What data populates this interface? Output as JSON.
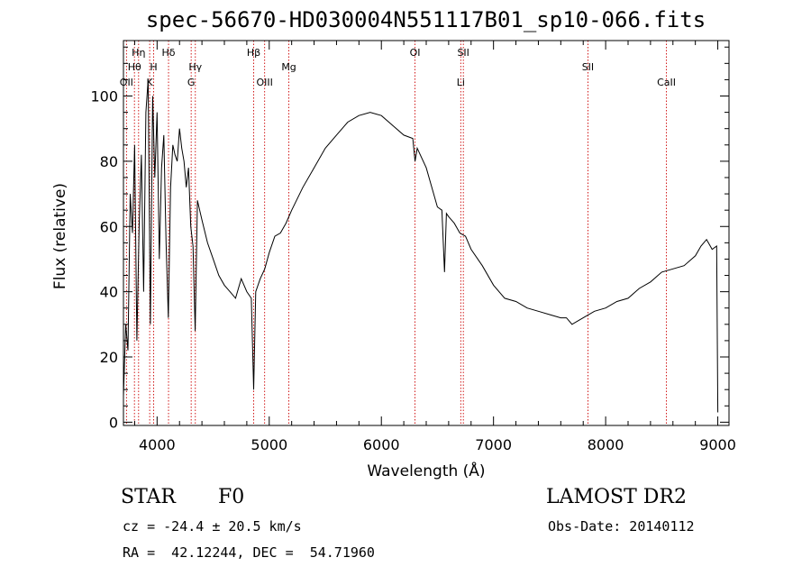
{
  "title": "spec-56670-HD030004N551117B01_sp10-066.fits",
  "info": {
    "obj_class": "STAR",
    "subclass": "F0",
    "survey": "LAMOST DR2",
    "cz_line": "cz = -24.4 ± 20.5 km/s",
    "obs_date": "Obs-Date: 20140112",
    "coords": "RA =  42.12244, DEC =  54.71960"
  },
  "colors": {
    "line_marker": "#cc0000",
    "spectrum": "#000000"
  },
  "chart_data": {
    "type": "line",
    "xlabel": "Wavelength (Å)",
    "ylabel": "Flux (relative)",
    "xlim": [
      3700,
      9100
    ],
    "ylim": [
      -1,
      117
    ],
    "xticks": [
      4000,
      5000,
      6000,
      7000,
      8000,
      9000
    ],
    "yticks": [
      0,
      20,
      40,
      60,
      80,
      100
    ],
    "grid": false,
    "spectral_lines": [
      {
        "label": "OII",
        "wave": 3727,
        "row": 3
      },
      {
        "label": "Hθ",
        "wave": 3798,
        "row": 2
      },
      {
        "label": "Hη",
        "wave": 3835,
        "row": 1
      },
      {
        "label": "K",
        "wave": 3934,
        "row": 3
      },
      {
        "label": "H",
        "wave": 3969,
        "row": 2
      },
      {
        "label": "Hδ",
        "wave": 4102,
        "row": 1
      },
      {
        "label": "G",
        "wave": 4304,
        "row": 3
      },
      {
        "label": "Hγ",
        "wave": 4341,
        "row": 2
      },
      {
        "label": "Hβ",
        "wave": 4861,
        "row": 1
      },
      {
        "label": "OIII",
        "wave": 4959,
        "row": 3
      },
      {
        "label": "Mg",
        "wave": 5175,
        "row": 2
      },
      {
        "label": "OI",
        "wave": 6300,
        "row": 1
      },
      {
        "label": "Li",
        "wave": 6708,
        "row": 3
      },
      {
        "label": "SII",
        "wave": 6731,
        "row": 1
      },
      {
        "label": "SII",
        "wave": 7842,
        "row": 2
      },
      {
        "label": "CaII",
        "wave": 8542,
        "row": 3
      }
    ],
    "spectrum": {
      "x": [
        3700,
        3720,
        3740,
        3760,
        3780,
        3800,
        3820,
        3840,
        3860,
        3880,
        3900,
        3920,
        3940,
        3960,
        3980,
        4000,
        4020,
        4040,
        4060,
        4080,
        4100,
        4120,
        4140,
        4160,
        4180,
        4200,
        4220,
        4240,
        4260,
        4280,
        4300,
        4320,
        4340,
        4360,
        4380,
        4400,
        4450,
        4500,
        4550,
        4600,
        4650,
        4700,
        4750,
        4800,
        4840,
        4861,
        4880,
        4920,
        4960,
        5000,
        5050,
        5100,
        5150,
        5200,
        5300,
        5400,
        5500,
        5600,
        5700,
        5800,
        5900,
        6000,
        6100,
        6200,
        6280,
        6300,
        6320,
        6400,
        6500,
        6540,
        6563,
        6580,
        6600,
        6650,
        6700,
        6750,
        6800,
        6900,
        7000,
        7100,
        7200,
        7300,
        7400,
        7500,
        7600,
        7650,
        7700,
        7750,
        7800,
        7900,
        8000,
        8100,
        8200,
        8300,
        8400,
        8500,
        8600,
        8700,
        8800,
        8850,
        8900,
        8950,
        8990,
        9000
      ],
      "y": [
        8,
        30,
        22,
        70,
        58,
        85,
        25,
        60,
        82,
        40,
        95,
        105,
        30,
        100,
        75,
        95,
        50,
        78,
        88,
        55,
        32,
        72,
        85,
        82,
        80,
        90,
        84,
        80,
        72,
        78,
        60,
        54,
        28,
        68,
        65,
        62,
        55,
        50,
        45,
        42,
        40,
        38,
        44,
        40,
        38,
        10,
        40,
        44,
        47,
        52,
        57,
        58,
        61,
        65,
        72,
        78,
        84,
        88,
        92,
        94,
        95,
        94,
        91,
        88,
        87,
        80,
        84,
        78,
        66,
        65,
        46,
        64,
        63,
        61,
        58,
        57,
        53,
        48,
        42,
        38,
        37,
        35,
        34,
        33,
        32,
        32,
        30,
        31,
        32,
        34,
        35,
        37,
        38,
        41,
        43,
        46,
        47,
        48,
        51,
        54,
        56,
        53,
        54,
        3
      ]
    }
  }
}
